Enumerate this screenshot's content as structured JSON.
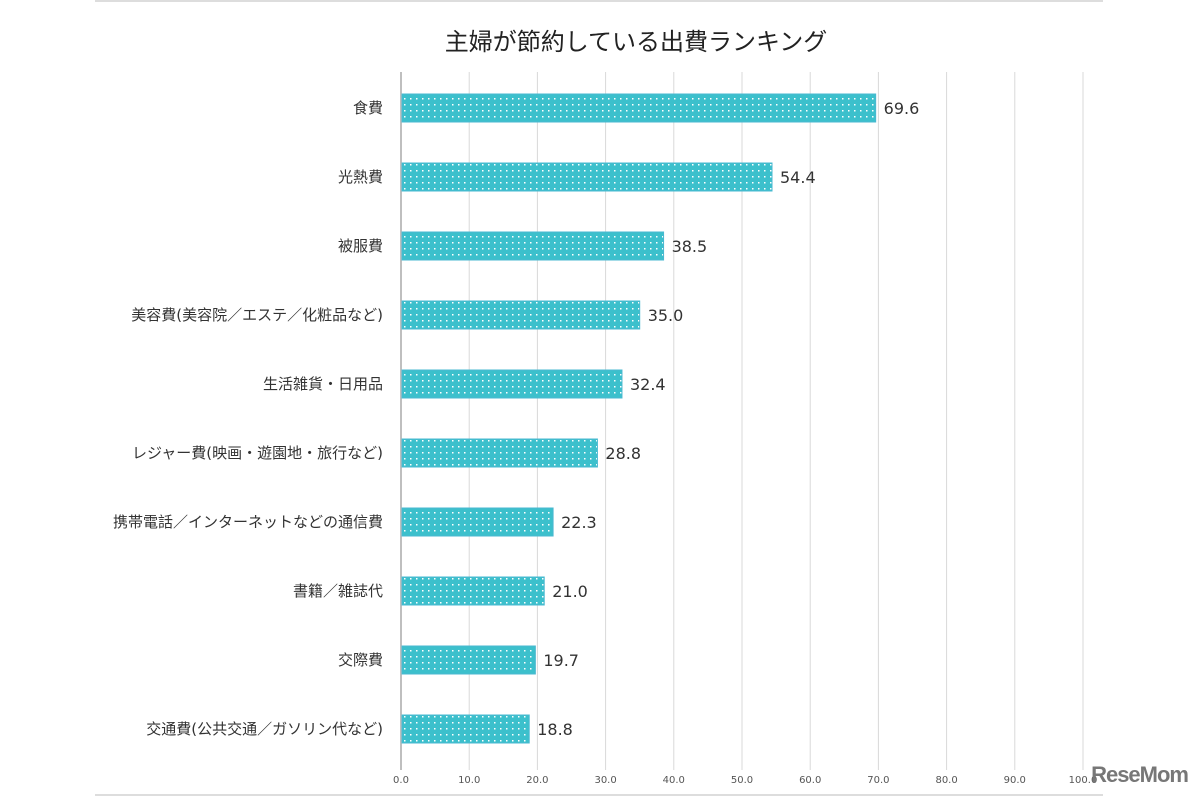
{
  "chart_data": {
    "type": "bar",
    "orientation": "horizontal",
    "title": "主婦が節約している出費ランキング",
    "categories": [
      "食費",
      "光熱費",
      "被服費",
      "美容費(美容院／エステ／化粧品など)",
      "生活雑貨・日用品",
      "レジャー費(映画・遊園地・旅行など)",
      "携帯電話／インターネットなどの通信費",
      "書籍／雑誌代",
      "交際費",
      "交通費(公共交通／ガソリン代など)"
    ],
    "values": [
      69.6,
      54.4,
      38.5,
      35.0,
      32.4,
      28.8,
      22.3,
      21.0,
      19.7,
      18.8
    ],
    "value_labels": [
      "69.6",
      "54.4",
      "38.5",
      "35.0",
      "32.4",
      "28.8",
      "22.3",
      "21.0",
      "19.7",
      "18.8"
    ],
    "xlim": [
      0,
      100
    ],
    "ticks": [
      "0.0",
      "10.0",
      "20.0",
      "30.0",
      "40.0",
      "50.0",
      "60.0",
      "70.0",
      "80.0",
      "90.0",
      "100.0"
    ],
    "grid": true,
    "bar_color": "#3cc0cc",
    "bar_pattern": "white-dots"
  },
  "watermark": "ReseMom"
}
